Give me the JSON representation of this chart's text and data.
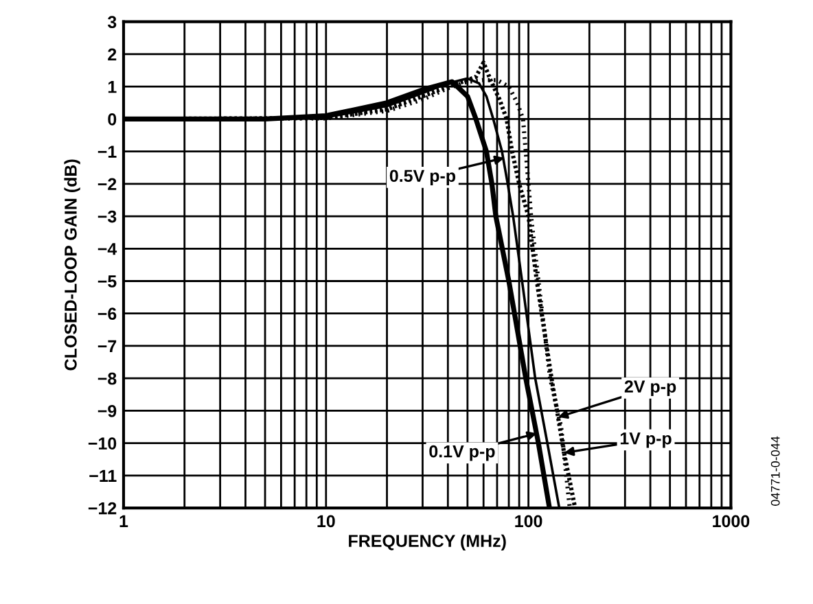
{
  "chart_data": {
    "type": "line",
    "xlabel": "FREQUENCY (MHz)",
    "ylabel": "CLOSED-LOOP GAIN (dB)",
    "log": "x",
    "xlim": [
      1,
      1000
    ],
    "ylim": [
      -12,
      3
    ],
    "xticks": [
      1,
      {
        "value": 2,
        "label": null
      },
      {
        "value": 3,
        "label": null
      },
      {
        "value": 4,
        "label": null
      },
      {
        "value": 5,
        "label": null
      },
      {
        "value": 6,
        "label": null
      },
      {
        "value": 7,
        "label": null
      },
      {
        "value": 8,
        "label": null
      },
      {
        "value": 9,
        "label": null
      },
      10,
      {
        "value": 20,
        "label": null
      },
      {
        "value": 30,
        "label": null
      },
      {
        "value": 40,
        "label": null
      },
      {
        "value": 50,
        "label": null
      },
      {
        "value": 60,
        "label": null
      },
      {
        "value": 70,
        "label": null
      },
      {
        "value": 80,
        "label": null
      },
      {
        "value": 90,
        "label": null
      },
      100,
      {
        "value": 200,
        "label": null
      },
      {
        "value": 300,
        "label": null
      },
      {
        "value": 400,
        "label": null
      },
      {
        "value": 500,
        "label": null
      },
      {
        "value": 600,
        "label": null
      },
      {
        "value": 700,
        "label": null
      },
      {
        "value": 800,
        "label": null
      },
      {
        "value": 900,
        "label": null
      },
      1000
    ],
    "yticks": [
      {
        "value": -12,
        "label": "−12"
      },
      {
        "value": -11,
        "label": "−11"
      },
      {
        "value": -10,
        "label": "−10"
      },
      {
        "value": -9,
        "label": "−9"
      },
      {
        "value": -8,
        "label": "−8"
      },
      {
        "value": -7,
        "label": "−7"
      },
      {
        "value": -6,
        "label": "−6"
      },
      {
        "value": -5,
        "label": "−5"
      },
      {
        "value": -4,
        "label": "−4"
      },
      {
        "value": -3,
        "label": "−3"
      },
      {
        "value": -2,
        "label": "−2"
      },
      {
        "value": -1,
        "label": "−1"
      },
      0,
      1,
      2,
      3
    ],
    "grid": true,
    "marker": "none",
    "series": [
      {
        "color": "#000000",
        "line_style": "solid",
        "x": [
          1,
          5,
          10,
          20,
          30,
          42,
          50,
          55,
          62,
          66,
          69,
          80,
          97,
          112,
          127
        ],
        "values": [
          0,
          0,
          0.1,
          0.5,
          0.9,
          1.15,
          0.7,
          0,
          -1,
          -2,
          -3,
          -5,
          -8,
          -10,
          -12
        ]
      },
      {
        "color": "#000000",
        "line_style": "solid",
        "x": [
          1,
          10,
          20,
          30,
          40,
          50,
          57,
          62,
          67,
          74,
          79,
          84,
          93,
          108,
          124,
          142
        ],
        "values": [
          0,
          0.05,
          0.4,
          0.8,
          1.1,
          1.25,
          1.1,
          0.7,
          0,
          -1,
          -2,
          -3,
          -5,
          -8,
          -10,
          -12
        ]
      },
      {
        "color": "#000000",
        "line_style": "dotted",
        "x": [
          1,
          10,
          20,
          30,
          40,
          50,
          55,
          60,
          65,
          72,
          78,
          83,
          90,
          100,
          110,
          130,
          150,
          170
        ],
        "values": [
          0,
          0.03,
          0.3,
          0.7,
          1.0,
          1.2,
          1.3,
          1.74,
          1.2,
          0.6,
          0,
          -1,
          -2,
          -3,
          -5,
          -8,
          -10.3,
          -12
        ]
      },
      {
        "color": "#000000",
        "line_style": "dotted",
        "x": [
          1,
          10,
          20,
          30,
          40,
          50,
          60,
          70,
          80,
          88,
          94,
          97,
          100,
          103,
          112,
          128,
          145,
          160
        ],
        "values": [
          0,
          0.02,
          0.25,
          0.6,
          0.95,
          1.15,
          1.2,
          1.2,
          1.0,
          0.5,
          0,
          -1,
          -2,
          -3,
          -5,
          -8,
          -9.5,
          -12
        ]
      }
    ],
    "annotations": [
      {
        "text": "0.5V p-p",
        "x": 76,
        "y": -1.2
      },
      {
        "text": "0.1V p-p",
        "x": 110,
        "y": -9.7
      },
      {
        "text": "2V p-p",
        "x": 140,
        "y": -9.2
      },
      {
        "text": "1V p-p",
        "x": 150,
        "y": -10.3
      },
      "04771-0-044"
    ]
  }
}
